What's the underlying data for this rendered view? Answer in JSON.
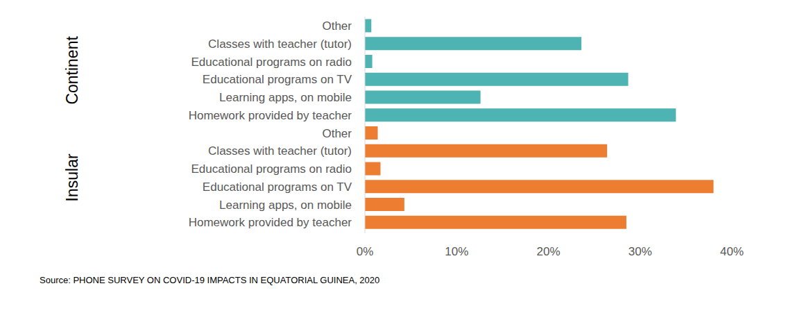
{
  "chart_data": {
    "type": "bar",
    "orientation": "horizontal",
    "categories": [
      "Other",
      "Classes with teacher (tutor)",
      "Educational programs on radio",
      "Educational programs on TV",
      "Learning apps, on mobile",
      "Homework provided by teacher"
    ],
    "series": [
      {
        "name": "Continent",
        "color": "#4db3b3",
        "values": [
          0.7,
          23.6,
          0.8,
          28.7,
          12.6,
          33.9
        ]
      },
      {
        "name": "Insular",
        "color": "#ed7d31",
        "values": [
          1.4,
          26.4,
          1.7,
          38.0,
          4.3,
          28.5
        ]
      }
    ],
    "xlim": [
      0,
      40
    ],
    "xticks": [
      {
        "value": 0,
        "label": "0%"
      },
      {
        "value": 10,
        "label": "10%"
      },
      {
        "value": 20,
        "label": "20%"
      },
      {
        "value": 30,
        "label": "30%"
      },
      {
        "value": 40,
        "label": "40%"
      }
    ],
    "grid": false,
    "source": "Source: PHONE SURVEY ON COVID-19 IMPACTS IN EQUATORIAL GUINEA, 2020"
  }
}
